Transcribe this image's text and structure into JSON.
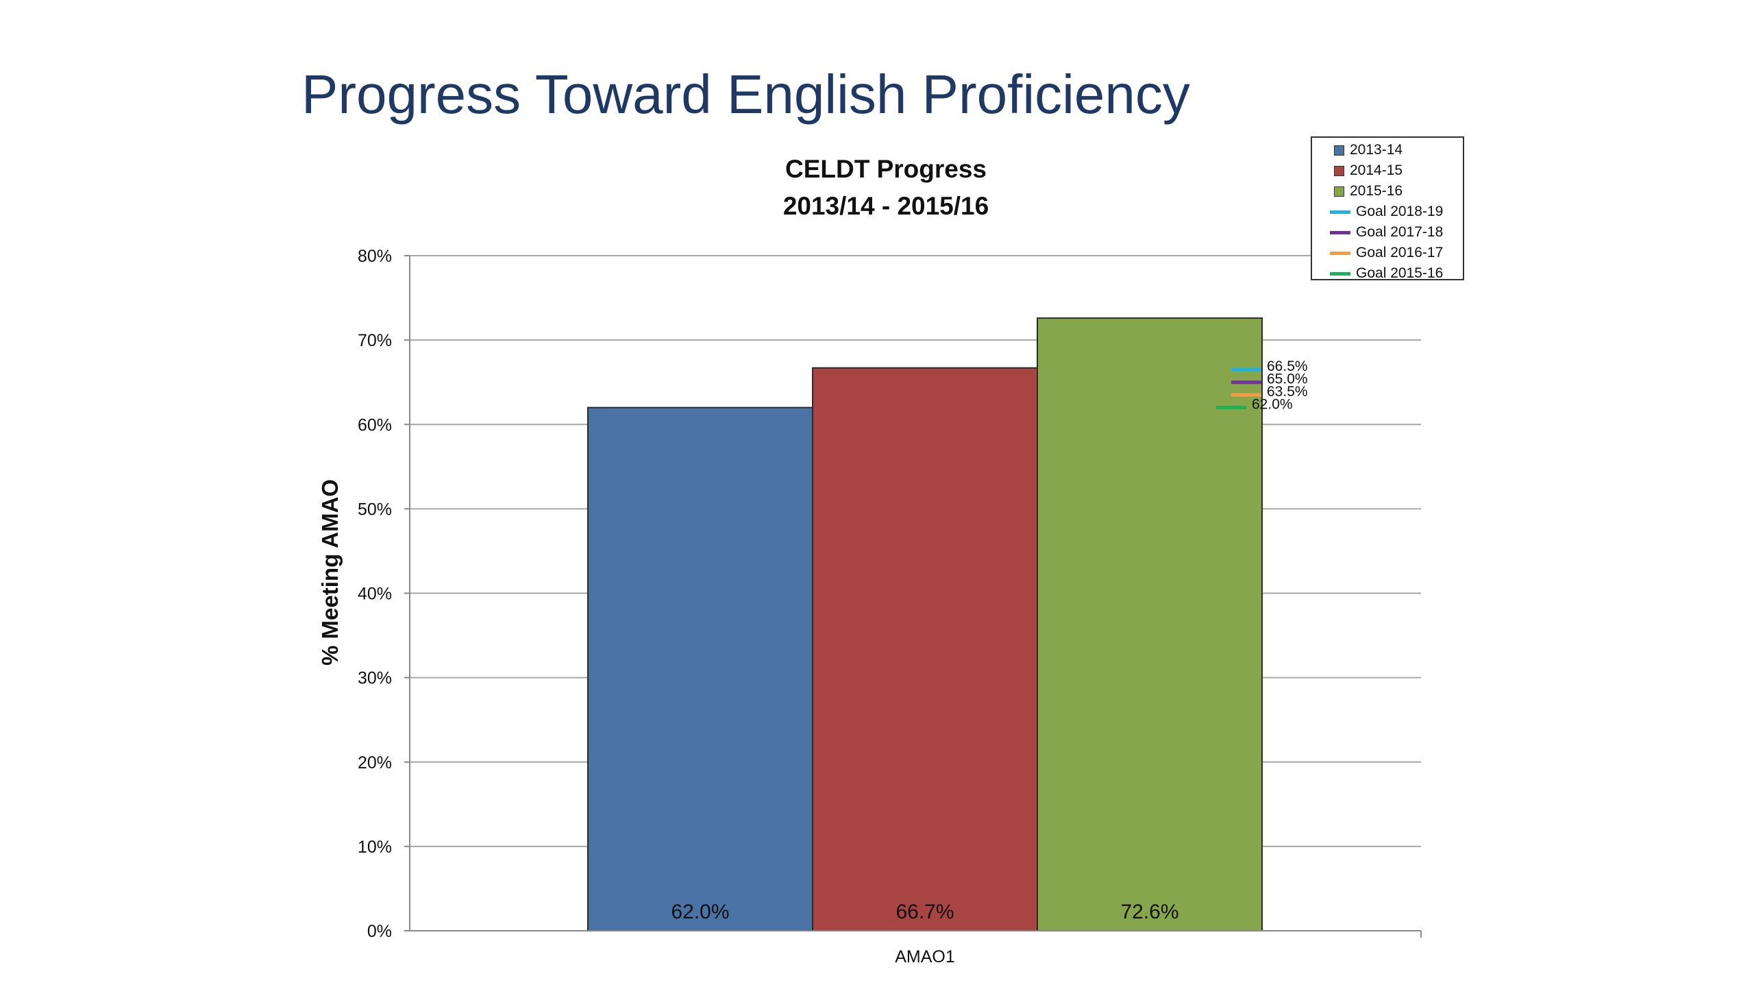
{
  "slide": {
    "title": "Progress Toward English Proficiency"
  },
  "chart_data": {
    "type": "bar",
    "title": "CELDT Progress",
    "subtitle": "2013/14 - 2015/16",
    "xlabel": "",
    "ylabel": "% Meeting AMAO",
    "categories": [
      "AMAO1"
    ],
    "ylim": [
      0,
      80
    ],
    "yticks": [
      "0%",
      "10%",
      "20%",
      "30%",
      "40%",
      "50%",
      "60%",
      "70%",
      "80%"
    ],
    "grid": true,
    "legend_position": "top-right",
    "series": [
      {
        "name": "2013-14",
        "values": [
          62.0
        ],
        "label": "62.0%",
        "color": "#4a72a4"
      },
      {
        "name": "2014-15",
        "values": [
          66.7
        ],
        "label": "66.7%",
        "color": "#a84543"
      },
      {
        "name": "2015-16",
        "values": [
          72.6
        ],
        "label": "72.6%",
        "color": "#87a54b"
      }
    ],
    "goals": [
      {
        "name": "Goal 2018-19",
        "value": 66.5,
        "label": "66.5%",
        "color": "#1fb1e6"
      },
      {
        "name": "Goal 2017-18",
        "value": 65.0,
        "label": "65.0%",
        "color": "#7130a0"
      },
      {
        "name": "Goal 2016-17",
        "value": 63.5,
        "label": "63.5%",
        "color": "#f59a45"
      },
      {
        "name": "Goal 2015-16",
        "value": 62.0,
        "label": "62.0%",
        "color": "#1fb15a"
      }
    ]
  }
}
